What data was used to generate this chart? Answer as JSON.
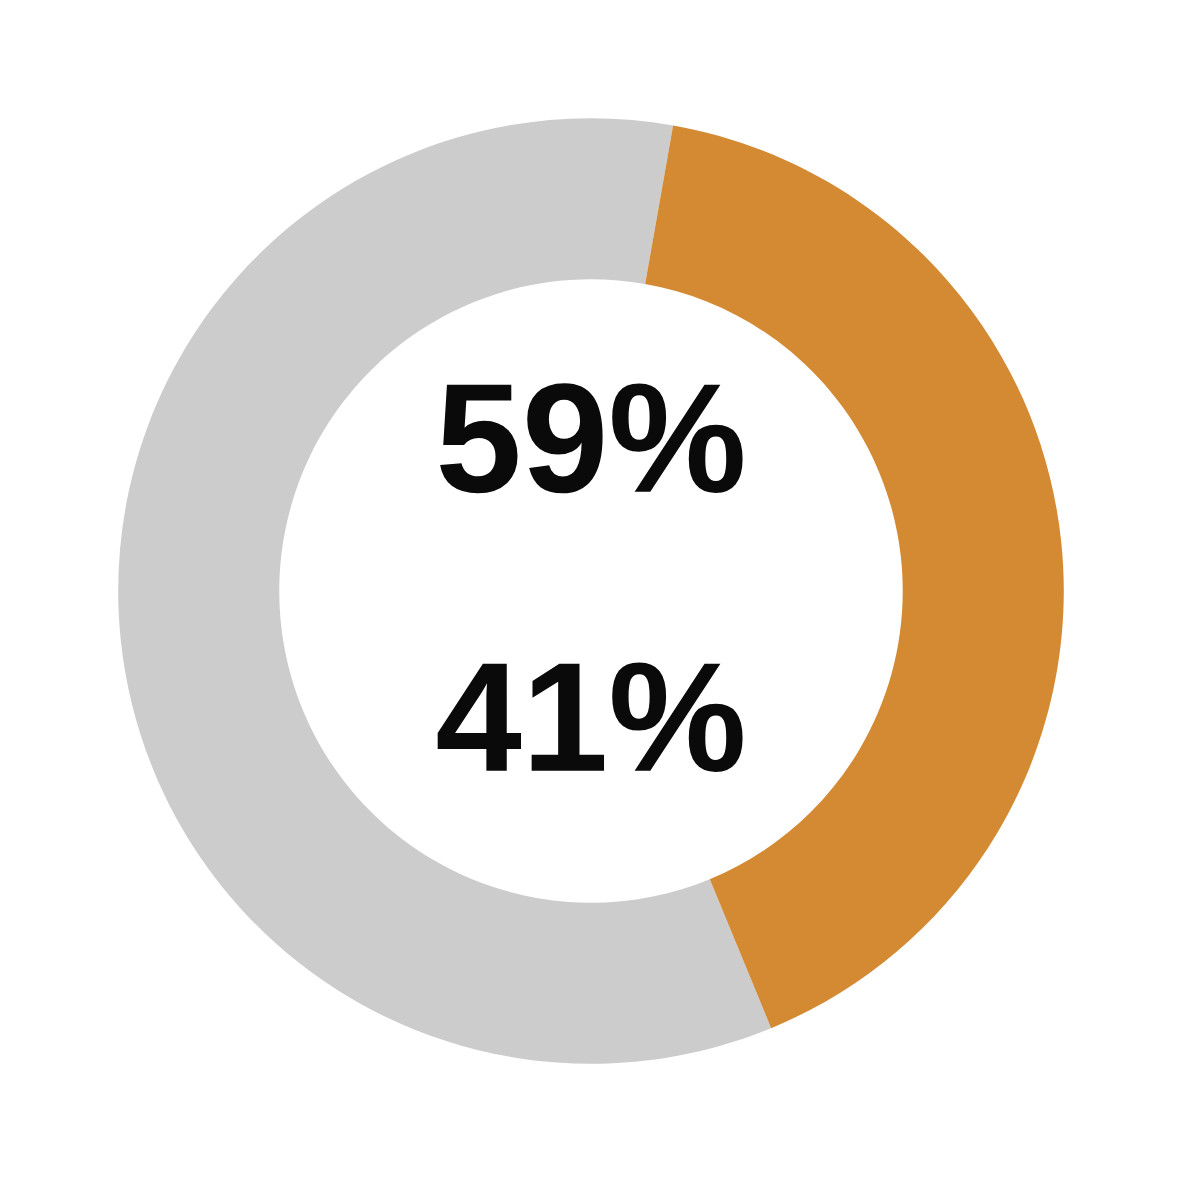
{
  "chart_data": {
    "type": "donut",
    "categories": [
      null,
      null
    ],
    "values": [
      59,
      41
    ],
    "colors": [
      "#cccccc",
      "#d38a33"
    ],
    "annotations": [
      "59%",
      "41%"
    ],
    "legend": false
  }
}
